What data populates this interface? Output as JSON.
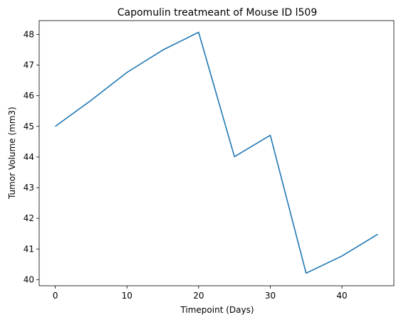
{
  "chart_data": {
    "type": "line",
    "title": "Capomulin treatmeant of Mouse ID l509",
    "xlabel": "Timepoint (Days)",
    "ylabel": "Tumor Volume (mm3)",
    "xlim": [
      -2.25,
      47.25
    ],
    "ylim": [
      39.8,
      48.45
    ],
    "xticks": [
      0,
      10,
      20,
      30,
      40
    ],
    "yticks": [
      40,
      41,
      42,
      43,
      44,
      45,
      46,
      47,
      48
    ],
    "grid": false,
    "series": [
      {
        "color": "#1f77b4",
        "x": [
          0,
          5,
          10,
          15,
          20,
          25,
          30,
          35,
          40,
          45
        ],
        "y": [
          45.0,
          45.85,
          46.76,
          47.49,
          48.07,
          44.01,
          44.71,
          40.21,
          40.77,
          41.48
        ]
      }
    ]
  }
}
